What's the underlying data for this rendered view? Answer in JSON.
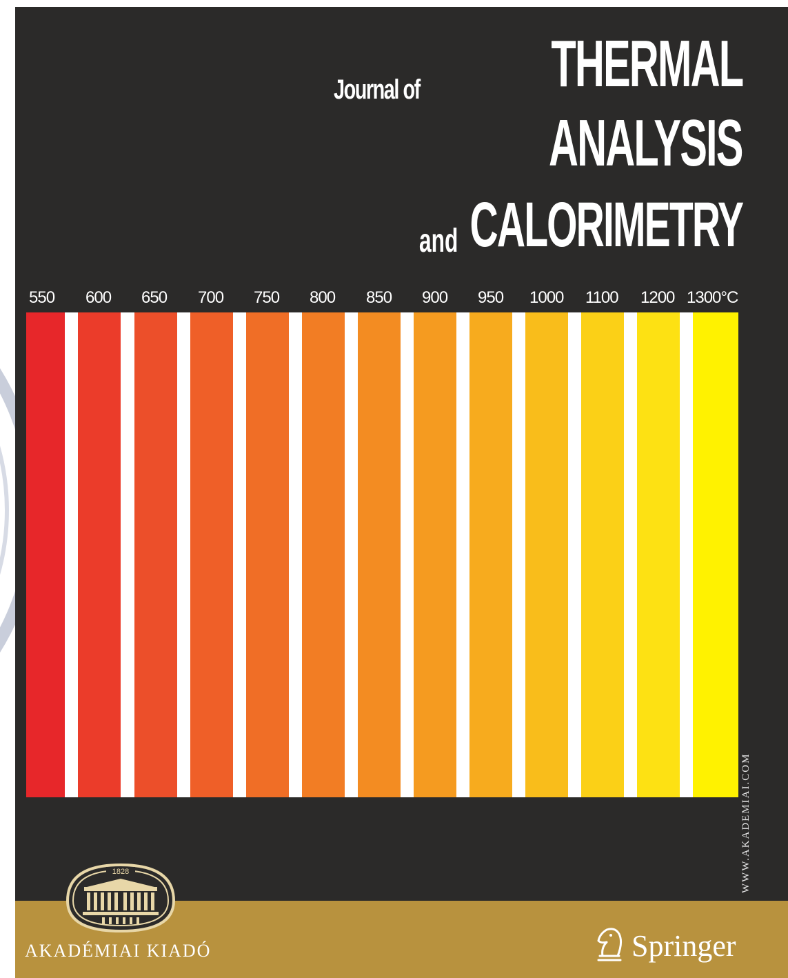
{
  "cover": {
    "background": "#2b2a29",
    "title": {
      "journal_of": "Journal of",
      "line1": "THERMAL",
      "line2": "ANALYSIS",
      "and": "and",
      "line3": "CALORIMETRY"
    },
    "temperature_labels": [
      "550",
      "600",
      "650",
      "700",
      "750",
      "800",
      "850",
      "900",
      "950",
      "1000",
      "1100",
      "1200",
      "1300°C"
    ],
    "strip_colors": [
      "#e7272a",
      "#eb3c2a",
      "#ec4f2a",
      "#ef5f28",
      "#f06e26",
      "#f27d24",
      "#f38c22",
      "#f59b20",
      "#f7ab1e",
      "#f9bd1b",
      "#fbd017",
      "#fde113",
      "#fff200"
    ],
    "website": "WWW.AKADEMIAI.COM",
    "publisher_left": {
      "name": "AKADÉMIAI KIADÓ",
      "logo_year": "1828",
      "logo_icon": "building-seal-icon"
    },
    "publisher_right": {
      "name": "Springer",
      "logo_icon": "chess-knight-icon"
    },
    "gold_color": "#b8923e"
  }
}
